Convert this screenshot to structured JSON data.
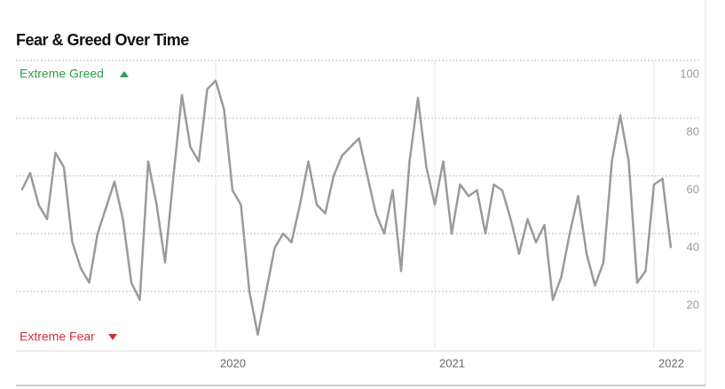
{
  "chart_data": {
    "type": "line",
    "title": "Fear & Greed Over Time",
    "annotations": {
      "top": "Extreme Greed",
      "bottom": "Extreme Fear"
    },
    "categories": [
      null,
      null,
      null,
      null,
      null,
      null,
      null,
      null,
      null,
      null,
      null,
      null,
      null,
      null,
      null,
      null,
      null,
      null,
      null,
      null,
      null,
      null,
      null,
      "2020",
      null,
      null,
      null,
      null,
      null,
      null,
      null,
      null,
      null,
      null,
      null,
      null,
      null,
      null,
      null,
      null,
      null,
      null,
      null,
      null,
      null,
      null,
      null,
      null,
      null,
      "2021",
      null,
      null,
      null,
      null,
      null,
      null,
      null,
      null,
      null,
      null,
      null,
      null,
      null,
      null,
      null,
      null,
      null,
      null,
      null,
      null,
      null,
      null,
      null,
      null,
      null,
      "2022",
      null,
      null
    ],
    "series": [
      {
        "name": "Fear & Greed",
        "color": "#9a9a9a",
        "values": [
          55,
          61,
          50,
          45,
          68,
          63,
          37,
          28,
          23,
          40,
          49,
          58,
          45,
          23,
          17,
          65,
          50,
          30,
          60,
          88,
          70,
          65,
          90,
          93,
          83,
          55,
          50,
          20,
          5,
          20,
          35,
          40,
          37,
          50,
          65,
          50,
          47,
          60,
          67,
          70,
          73,
          60,
          47,
          40,
          55,
          27,
          65,
          87,
          63,
          50,
          65,
          40,
          57,
          53,
          55,
          40,
          57,
          55,
          45,
          33,
          45,
          37,
          43,
          17,
          25,
          40,
          53,
          33,
          22,
          30,
          65,
          81,
          65,
          23,
          27,
          57,
          59,
          35
        ]
      }
    ],
    "ylim": [
      0,
      100
    ],
    "yticks": [
      20,
      40,
      60,
      80,
      100
    ],
    "grid": true
  }
}
